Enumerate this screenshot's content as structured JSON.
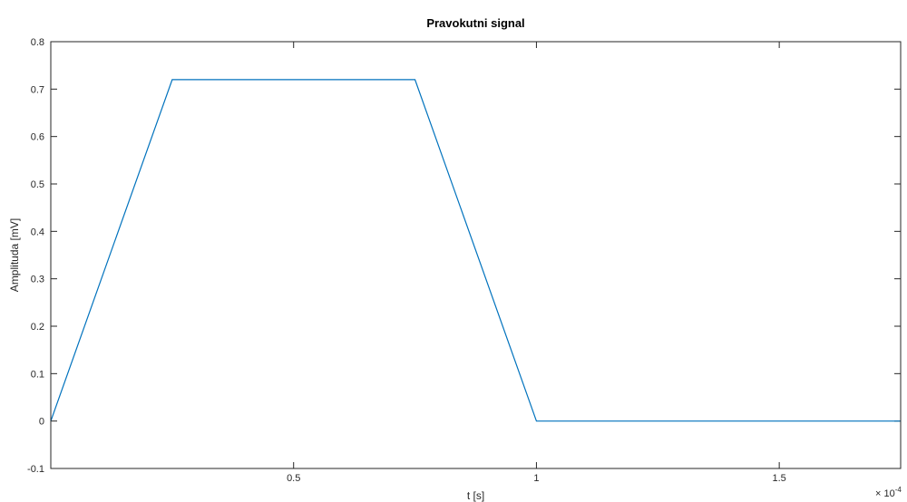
{
  "chart_data": {
    "type": "line",
    "title": "Pravokutni signal",
    "xlabel": "t [s]",
    "ylabel": "Amplituda [mV]",
    "x_multiplier_label": "× 10",
    "x_multiplier_exponent": "-4",
    "xlim": [
      0,
      1.75
    ],
    "ylim": [
      -0.1,
      0.8
    ],
    "x_ticks": [
      0.5,
      1,
      1.5
    ],
    "x_tick_labels": [
      "0.5",
      "1",
      "1.5"
    ],
    "y_ticks": [
      -0.1,
      0,
      0.1,
      0.2,
      0.3,
      0.4,
      0.5,
      0.6,
      0.7,
      0.8
    ],
    "y_tick_labels": [
      "-0.1",
      "0",
      "0.1",
      "0.2",
      "0.3",
      "0.4",
      "0.5",
      "0.6",
      "0.7",
      "0.8"
    ],
    "grid": false,
    "series": [
      {
        "color": "#0072bd",
        "x": [
          0,
          0.25,
          0.75,
          1.0,
          1.75
        ],
        "y": [
          0,
          0.72,
          0.72,
          0,
          0
        ]
      }
    ]
  }
}
